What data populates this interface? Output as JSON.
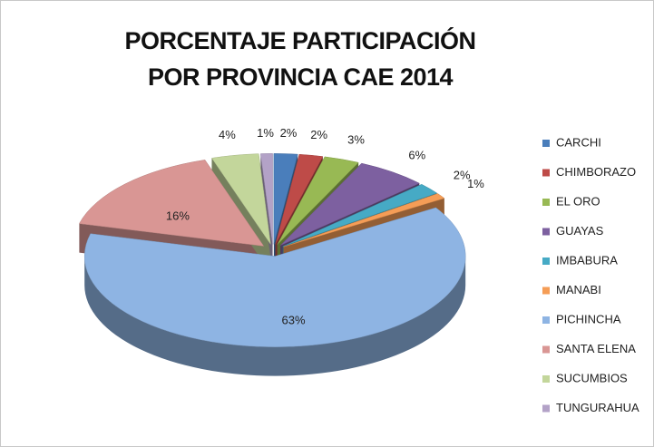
{
  "chart_data": {
    "type": "pie",
    "title": "PORCENTAJE PARTICIPACIÓN POR PROVINCIA CAE 2014",
    "categories": [
      "CARCHI",
      "CHIMBORAZO",
      "EL ORO",
      "GUAYAS",
      "IMBABURA",
      "MANABI",
      "PICHINCHA",
      "SANTA ELENA",
      "SUCUMBIOS",
      "TUNGURAHUA"
    ],
    "values": [
      2,
      2,
      3,
      6,
      2,
      1,
      63,
      16,
      4,
      1
    ],
    "value_labels": [
      "2%",
      "2%",
      "3%",
      "6%",
      "2%",
      "1%",
      "63%",
      "16%",
      "4%",
      "1%"
    ],
    "colors": [
      "#4a7ebb",
      "#be4b48",
      "#98b954",
      "#7d60a0",
      "#46aac5",
      "#f59d56",
      "#8eb4e3",
      "#d99694",
      "#c3d69b",
      "#b3a2c7"
    ],
    "legend": "right"
  }
}
